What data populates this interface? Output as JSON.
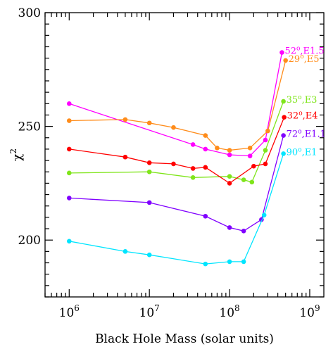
{
  "chart_data": {
    "type": "line",
    "xlabel": "Black Hole Mass (solar units)",
    "ylabel": "χ",
    "ylabel_sup": "2",
    "xscale": "log",
    "xlim": [
      500000,
      1500000000
    ],
    "ylim": [
      175,
      300
    ],
    "x_ticks": [
      {
        "value": 1000000,
        "base": "10",
        "exp": "6"
      },
      {
        "value": 10000000,
        "base": "10",
        "exp": "7"
      },
      {
        "value": 100000000,
        "base": "10",
        "exp": "8"
      },
      {
        "value": 1000000000,
        "base": "10",
        "exp": "9"
      }
    ],
    "y_ticks": [
      {
        "value": 200,
        "label": "200"
      },
      {
        "value": 250,
        "label": "250"
      },
      {
        "value": 300,
        "label": "300"
      }
    ],
    "grid": false,
    "series": [
      {
        "label_angle": "52",
        "label_deg": "o",
        "label_model": ",E1.5",
        "color": "#ff00ff",
        "x": [
          1000000,
          35000000,
          50000000,
          100000000,
          180000000,
          280000000,
          450000000
        ],
        "y": [
          260,
          242,
          240,
          237.5,
          237,
          244,
          282.5
        ]
      },
      {
        "label_angle": "29",
        "label_deg": "o",
        "label_model": ",E5",
        "color": "#ff8c1a",
        "x": [
          1000000,
          5000000,
          10000000,
          20000000,
          50000000,
          70000000,
          100000000,
          180000000,
          300000000,
          500000000
        ],
        "y": [
          252.5,
          253,
          251.5,
          249.5,
          246,
          240.5,
          239.5,
          240.5,
          248,
          279
        ]
      },
      {
        "label_angle": "35",
        "label_deg": "o",
        "label_model": ",E3",
        "color": "#7fe51a",
        "x": [
          1000000,
          10000000,
          35000000,
          100000000,
          150000000,
          190000000,
          280000000,
          470000000
        ],
        "y": [
          229.5,
          230,
          227.5,
          228,
          226.5,
          225.5,
          239.5,
          261
        ]
      },
      {
        "label_angle": "32",
        "label_deg": "o",
        "label_model": ",E4",
        "color": "#ff0000",
        "x": [
          1000000,
          5000000,
          10000000,
          20000000,
          35000000,
          50000000,
          100000000,
          200000000,
          280000000,
          480000000
        ],
        "y": [
          240,
          236.5,
          234,
          233.5,
          231.5,
          232,
          225,
          232.5,
          233.5,
          254
        ]
      },
      {
        "label_angle": "72",
        "label_deg": "o",
        "label_model": ",E1.1",
        "color": "#8000ff",
        "x": [
          1000000,
          10000000,
          50000000,
          100000000,
          150000000,
          250000000,
          470000000
        ],
        "y": [
          218.5,
          216.5,
          210.5,
          205.5,
          204,
          209,
          246
        ]
      },
      {
        "label_angle": "90",
        "label_deg": "o",
        "label_model": ",E1",
        "color": "#00e5ff",
        "x": [
          1000000,
          5000000,
          10000000,
          50000000,
          100000000,
          150000000,
          270000000,
          470000000
        ],
        "y": [
          199.5,
          195,
          193.5,
          189.5,
          190.5,
          190.5,
          211,
          238
        ]
      }
    ]
  }
}
